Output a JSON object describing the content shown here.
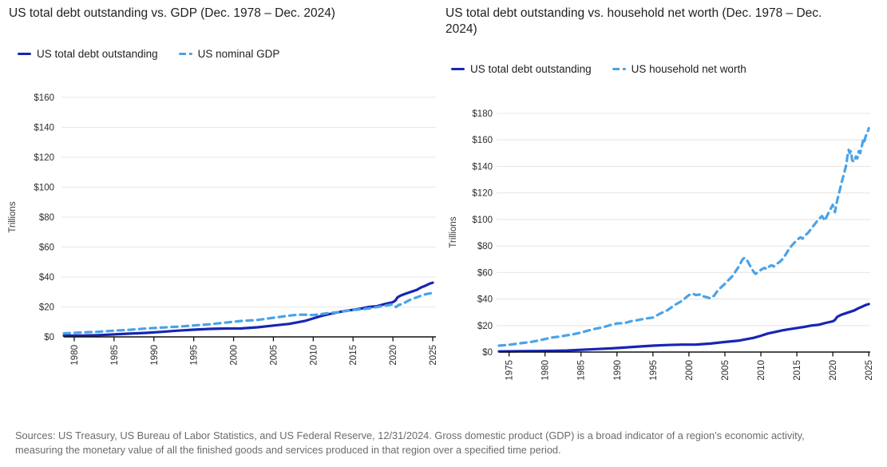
{
  "footer": {
    "text": "Sources: US Treasury, US Bureau of Labor Statistics, and US Federal Reserve, 12/31/2024. Gross domestic product (GDP) is a broad indicator of a region’s economic activity, measuring the monetary value of all the finished goods and services produced in that region over a specified time period."
  },
  "colors": {
    "debt": "#1726b3",
    "light_blue": "#4aa3e8",
    "gridline": "#e7e7e7",
    "axis": "#111111",
    "tick_text": "#2e2e2e"
  },
  "chart_data": [
    {
      "type": "line",
      "title": "US total debt outstanding vs. GDP (Dec. 1978 – Dec. 2024)",
      "ylabel": "Trillions",
      "ylim": [
        0,
        160
      ],
      "xlim": [
        1978.7,
        2025.4
      ],
      "grid": "horizontal",
      "legend_position": "top-left",
      "y_tick_labels": [
        "$0",
        "$20",
        "$40",
        "$60",
        "$80",
        "$100",
        "$120",
        "$140",
        "$160"
      ],
      "x_tick_labels": [
        "1980",
        "1985",
        "1990",
        "1995",
        "2000",
        "2005",
        "2010",
        "2015",
        "2020",
        "2025"
      ],
      "series": [
        {
          "name": "US total debt outstanding",
          "style": "solid",
          "color": "#1726b3",
          "points": [
            [
              1978.7,
              0.77
            ],
            [
              1979,
              0.79
            ],
            [
              1981,
              0.93
            ],
            [
              1983,
              1.14
            ],
            [
              1985,
              1.66
            ],
            [
              1987,
              2.21
            ],
            [
              1989,
              2.68
            ],
            [
              1991,
              3.36
            ],
            [
              1993,
              4.18
            ],
            [
              1995,
              4.8
            ],
            [
              1997,
              5.32
            ],
            [
              1999,
              5.61
            ],
            [
              2001,
              5.67
            ],
            [
              2003,
              6.41
            ],
            [
              2005,
              7.6
            ],
            [
              2007,
              8.68
            ],
            [
              2009,
              10.7
            ],
            [
              2010,
              12.3
            ],
            [
              2011,
              14.0
            ],
            [
              2012,
              15.2
            ],
            [
              2013,
              16.4
            ],
            [
              2014,
              17.3
            ],
            [
              2015,
              18.1
            ],
            [
              2016,
              18.9
            ],
            [
              2017,
              20.0
            ],
            [
              2018,
              20.5
            ],
            [
              2019,
              22.0
            ],
            [
              2020,
              23.2
            ],
            [
              2020.3,
              24.2
            ],
            [
              2020.6,
              26.5
            ],
            [
              2021,
              27.7
            ],
            [
              2021.5,
              28.7
            ],
            [
              2022,
              29.6
            ],
            [
              2022.5,
              30.5
            ],
            [
              2023,
              31.4
            ],
            [
              2023.3,
              32.3
            ],
            [
              2023.6,
              33.2
            ],
            [
              2024,
              34.0
            ],
            [
              2024.3,
              34.8
            ],
            [
              2024.6,
              35.5
            ],
            [
              2025,
              36.2
            ]
          ]
        },
        {
          "name": "US nominal GDP",
          "style": "dashed",
          "color": "#4aa3e8",
          "points": [
            [
              1978.7,
              2.35
            ],
            [
              1979,
              2.42
            ],
            [
              1981,
              2.96
            ],
            [
              1983,
              3.41
            ],
            [
              1985,
              4.18
            ],
            [
              1987,
              4.76
            ],
            [
              1989,
              5.58
            ],
            [
              1991,
              6.22
            ],
            [
              1993,
              6.82
            ],
            [
              1995,
              7.61
            ],
            [
              1997,
              8.44
            ],
            [
              1999,
              9.54
            ],
            [
              2001,
              10.66
            ],
            [
              2003,
              11.31
            ],
            [
              2005,
              12.76
            ],
            [
              2007,
              14.26
            ],
            [
              2008,
              14.78
            ],
            [
              2009,
              14.84
            ],
            [
              2010,
              14.55
            ],
            [
              2011,
              15.24
            ],
            [
              2012,
              16.0
            ],
            [
              2013,
              16.42
            ],
            [
              2014,
              17.19
            ],
            [
              2015,
              17.95
            ],
            [
              2016,
              18.4
            ],
            [
              2017,
              18.98
            ],
            [
              2018,
              19.88
            ],
            [
              2019,
              20.8
            ],
            [
              2020,
              21.73
            ],
            [
              2020.4,
              19.9
            ],
            [
              2020.7,
              21.3
            ],
            [
              2021,
              21.7
            ],
            [
              2021.5,
              22.9
            ],
            [
              2022,
              24.35
            ],
            [
              2022.5,
              25.5
            ],
            [
              2023,
              26.41
            ],
            [
              2023.5,
              27.4
            ],
            [
              2024,
              28.3
            ],
            [
              2024.5,
              28.9
            ],
            [
              2025,
              29.35
            ]
          ]
        }
      ]
    },
    {
      "type": "line",
      "title": "US total debt outstanding vs. household net worth (Dec. 1978 – Dec. 2024)",
      "ylabel": "Trillions",
      "ylim": [
        0,
        180
      ],
      "xlim": [
        1973.6,
        2025.2
      ],
      "grid": "horizontal",
      "legend_position": "top-left",
      "y_tick_labels": [
        "$0",
        "$20",
        "$40",
        "$60",
        "$80",
        "$100",
        "$120",
        "$140",
        "$160",
        "$180"
      ],
      "x_tick_labels": [
        "1975",
        "1980",
        "1985",
        "1990",
        "1995",
        "2000",
        "2005",
        "2010",
        "2015",
        "2020",
        "2025"
      ],
      "series": [
        {
          "name": "US total debt outstanding",
          "style": "solid",
          "color": "#1726b3",
          "points": [
            [
              1973.6,
              0.48
            ],
            [
              1975,
              0.54
            ],
            [
              1977,
              0.65
            ],
            [
              1979,
              0.79
            ],
            [
              1981,
              0.93
            ],
            [
              1983,
              1.14
            ],
            [
              1985,
              1.66
            ],
            [
              1987,
              2.21
            ],
            [
              1989,
              2.68
            ],
            [
              1991,
              3.36
            ],
            [
              1993,
              4.18
            ],
            [
              1995,
              4.8
            ],
            [
              1997,
              5.32
            ],
            [
              1999,
              5.61
            ],
            [
              2001,
              5.67
            ],
            [
              2003,
              6.41
            ],
            [
              2005,
              7.6
            ],
            [
              2007,
              8.68
            ],
            [
              2009,
              10.7
            ],
            [
              2010,
              12.3
            ],
            [
              2011,
              14.0
            ],
            [
              2012,
              15.2
            ],
            [
              2013,
              16.4
            ],
            [
              2014,
              17.3
            ],
            [
              2015,
              18.1
            ],
            [
              2016,
              18.9
            ],
            [
              2017,
              20.0
            ],
            [
              2018,
              20.5
            ],
            [
              2019,
              22.0
            ],
            [
              2020,
              23.2
            ],
            [
              2020.3,
              24.2
            ],
            [
              2020.6,
              26.5
            ],
            [
              2021,
              27.7
            ],
            [
              2021.5,
              28.7
            ],
            [
              2022,
              29.6
            ],
            [
              2022.5,
              30.5
            ],
            [
              2023,
              31.4
            ],
            [
              2023.3,
              32.3
            ],
            [
              2023.6,
              33.2
            ],
            [
              2024,
              34.0
            ],
            [
              2024.3,
              34.8
            ],
            [
              2024.6,
              35.5
            ],
            [
              2025,
              36.2
            ]
          ]
        },
        {
          "name": "US household net worth",
          "style": "dashed",
          "color": "#4aa3e8",
          "points": [
            [
              1973.6,
              4.8
            ],
            [
              1975,
              5.5
            ],
            [
              1976,
              6.2
            ],
            [
              1977,
              6.9
            ],
            [
              1978,
              7.6
            ],
            [
              1979,
              8.6
            ],
            [
              1980,
              9.8
            ],
            [
              1981,
              11.0
            ],
            [
              1982,
              11.6
            ],
            [
              1983,
              12.6
            ],
            [
              1984,
              13.5
            ],
            [
              1985,
              14.7
            ],
            [
              1986,
              16.2
            ],
            [
              1987,
              17.6
            ],
            [
              1988,
              18.6
            ],
            [
              1989,
              20.2
            ],
            [
              1990,
              21.6
            ],
            [
              1991,
              21.8
            ],
            [
              1992,
              23.3
            ],
            [
              1993,
              24.2
            ],
            [
              1994,
              25.3
            ],
            [
              1995,
              26.0
            ],
            [
              1996,
              29.0
            ],
            [
              1997,
              31.5
            ],
            [
              1998,
              35.4
            ],
            [
              1999,
              38.5
            ],
            [
              2000,
              43.0
            ],
            [
              2000.5,
              44.0
            ],
            [
              2001,
              43.0
            ],
            [
              2001.7,
              43.5
            ],
            [
              2002,
              42.0
            ],
            [
              2003,
              40.5
            ],
            [
              2003.5,
              42.5
            ],
            [
              2004,
              46.5
            ],
            [
              2005,
              51.5
            ],
            [
              2006,
              57.0
            ],
            [
              2006.5,
              61.0
            ],
            [
              2007,
              65.0
            ],
            [
              2007.4,
              69.5
            ],
            [
              2007.7,
              71.0
            ],
            [
              2008,
              70.0
            ],
            [
              2008.5,
              65.0
            ],
            [
              2009,
              60.5
            ],
            [
              2009.25,
              59.0
            ],
            [
              2009.7,
              60.5
            ],
            [
              2010,
              62.0
            ],
            [
              2010.5,
              63.5
            ],
            [
              2010.8,
              62.5
            ],
            [
              2011,
              64.0
            ],
            [
              2011.5,
              65.5
            ],
            [
              2011.8,
              64.5
            ],
            [
              2012,
              66.0
            ],
            [
              2012.5,
              67.5
            ],
            [
              2013,
              70.0
            ],
            [
              2013.5,
              74.0
            ],
            [
              2014,
              78.5
            ],
            [
              2014.5,
              81.5
            ],
            [
              2015,
              84.5
            ],
            [
              2015.5,
              86.5
            ],
            [
              2015.8,
              85.5
            ],
            [
              2016,
              87.5
            ],
            [
              2016.5,
              89.5
            ],
            [
              2017,
              93.0
            ],
            [
              2017.5,
              96.5
            ],
            [
              2018,
              100.0
            ],
            [
              2018.5,
              102.5
            ],
            [
              2018.9,
              99.0
            ],
            [
              2019,
              100.5
            ],
            [
              2019.5,
              106.0
            ],
            [
              2020,
              111.0
            ],
            [
              2020.3,
              105.5
            ],
            [
              2020.6,
              114.0
            ],
            [
              2021,
              123.0
            ],
            [
              2021.3,
              129.5
            ],
            [
              2021.6,
              135.5
            ],
            [
              2021.9,
              142.0
            ],
            [
              2022,
              147.0
            ],
            [
              2022.2,
              152.5
            ],
            [
              2022.35,
              150.0
            ],
            [
              2022.5,
              151.5
            ],
            [
              2022.7,
              144.5
            ],
            [
              2023,
              143.5
            ],
            [
              2023.2,
              147.5
            ],
            [
              2023.4,
              146.0
            ],
            [
              2023.6,
              151.5
            ],
            [
              2023.8,
              150.0
            ],
            [
              2024,
              154.5
            ],
            [
              2024.2,
              159.5
            ],
            [
              2024.35,
              157.5
            ],
            [
              2024.5,
              161.5
            ],
            [
              2024.7,
              164.5
            ],
            [
              2024.85,
              166.0
            ],
            [
              2025,
              168.8
            ]
          ]
        }
      ]
    }
  ]
}
